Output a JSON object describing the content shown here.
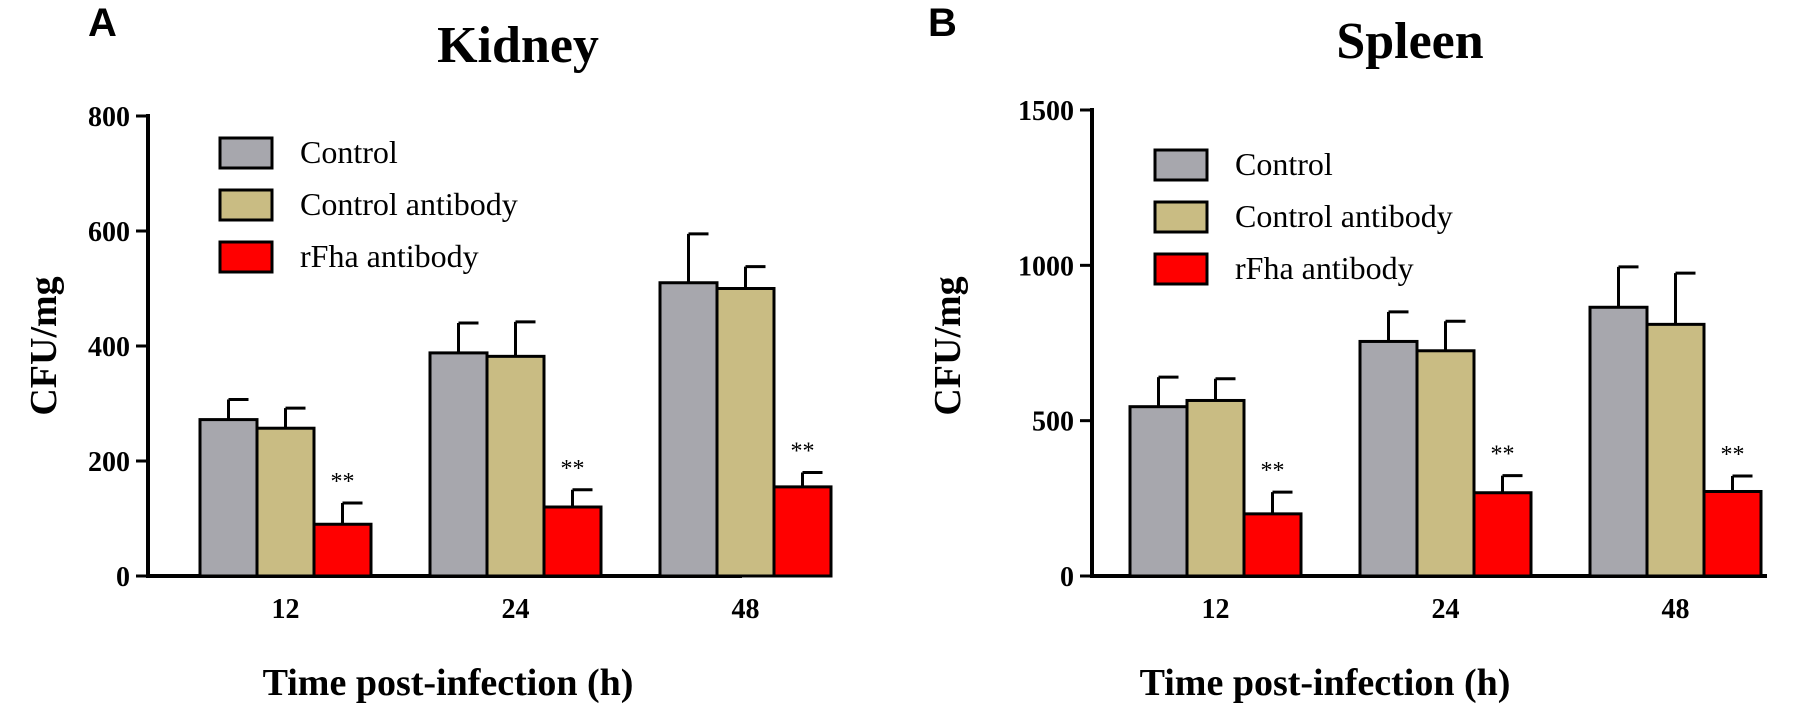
{
  "colors": {
    "Control": "#a7a7ad",
    "Control antibody": "#c9bc83",
    "rFha antibody": "#ff0000",
    "axis": "#000000"
  },
  "chart_data": [
    {
      "panel": "A",
      "type": "bar",
      "title": "Kidney",
      "xlabel": "Time post-infection (h)",
      "ylabel": "CFU/mg",
      "ylim": [
        0,
        800
      ],
      "yticks": [
        0,
        200,
        400,
        600,
        800
      ],
      "categories": [
        "12",
        "24",
        "48"
      ],
      "legend_position": "top-left",
      "series": [
        {
          "name": "Control",
          "values": [
            272,
            388,
            510
          ],
          "errors": [
            35,
            52,
            85
          ]
        },
        {
          "name": "Control antibody",
          "values": [
            257,
            382,
            500
          ],
          "errors": [
            35,
            60,
            38
          ]
        },
        {
          "name": "rFha antibody",
          "values": [
            90,
            120,
            155
          ],
          "errors": [
            37,
            30,
            25
          ]
        }
      ],
      "annotations": [
        {
          "series": "rFha antibody",
          "category": "12",
          "text": "**"
        },
        {
          "series": "rFha antibody",
          "category": "24",
          "text": "**"
        },
        {
          "series": "rFha antibody",
          "category": "48",
          "text": "**"
        }
      ]
    },
    {
      "panel": "B",
      "type": "bar",
      "title": "Spleen",
      "xlabel": "Time post-infection (h)",
      "ylabel": "CFU/mg",
      "ylim": [
        0,
        1500
      ],
      "yticks": [
        0,
        500,
        1000,
        1500
      ],
      "categories": [
        "12",
        "24",
        "48"
      ],
      "legend_position": "top-left",
      "series": [
        {
          "name": "Control",
          "values": [
            545,
            755,
            865
          ],
          "errors": [
            95,
            95,
            130
          ]
        },
        {
          "name": "Control antibody",
          "values": [
            565,
            725,
            810
          ],
          "errors": [
            70,
            95,
            165
          ]
        },
        {
          "name": "rFha antibody",
          "values": [
            200,
            268,
            272
          ],
          "errors": [
            70,
            55,
            50
          ]
        }
      ],
      "annotations": [
        {
          "series": "rFha antibody",
          "category": "12",
          "text": "**"
        },
        {
          "series": "rFha antibody",
          "category": "24",
          "text": "**"
        },
        {
          "series": "rFha antibody",
          "category": "48",
          "text": "**"
        }
      ]
    }
  ]
}
